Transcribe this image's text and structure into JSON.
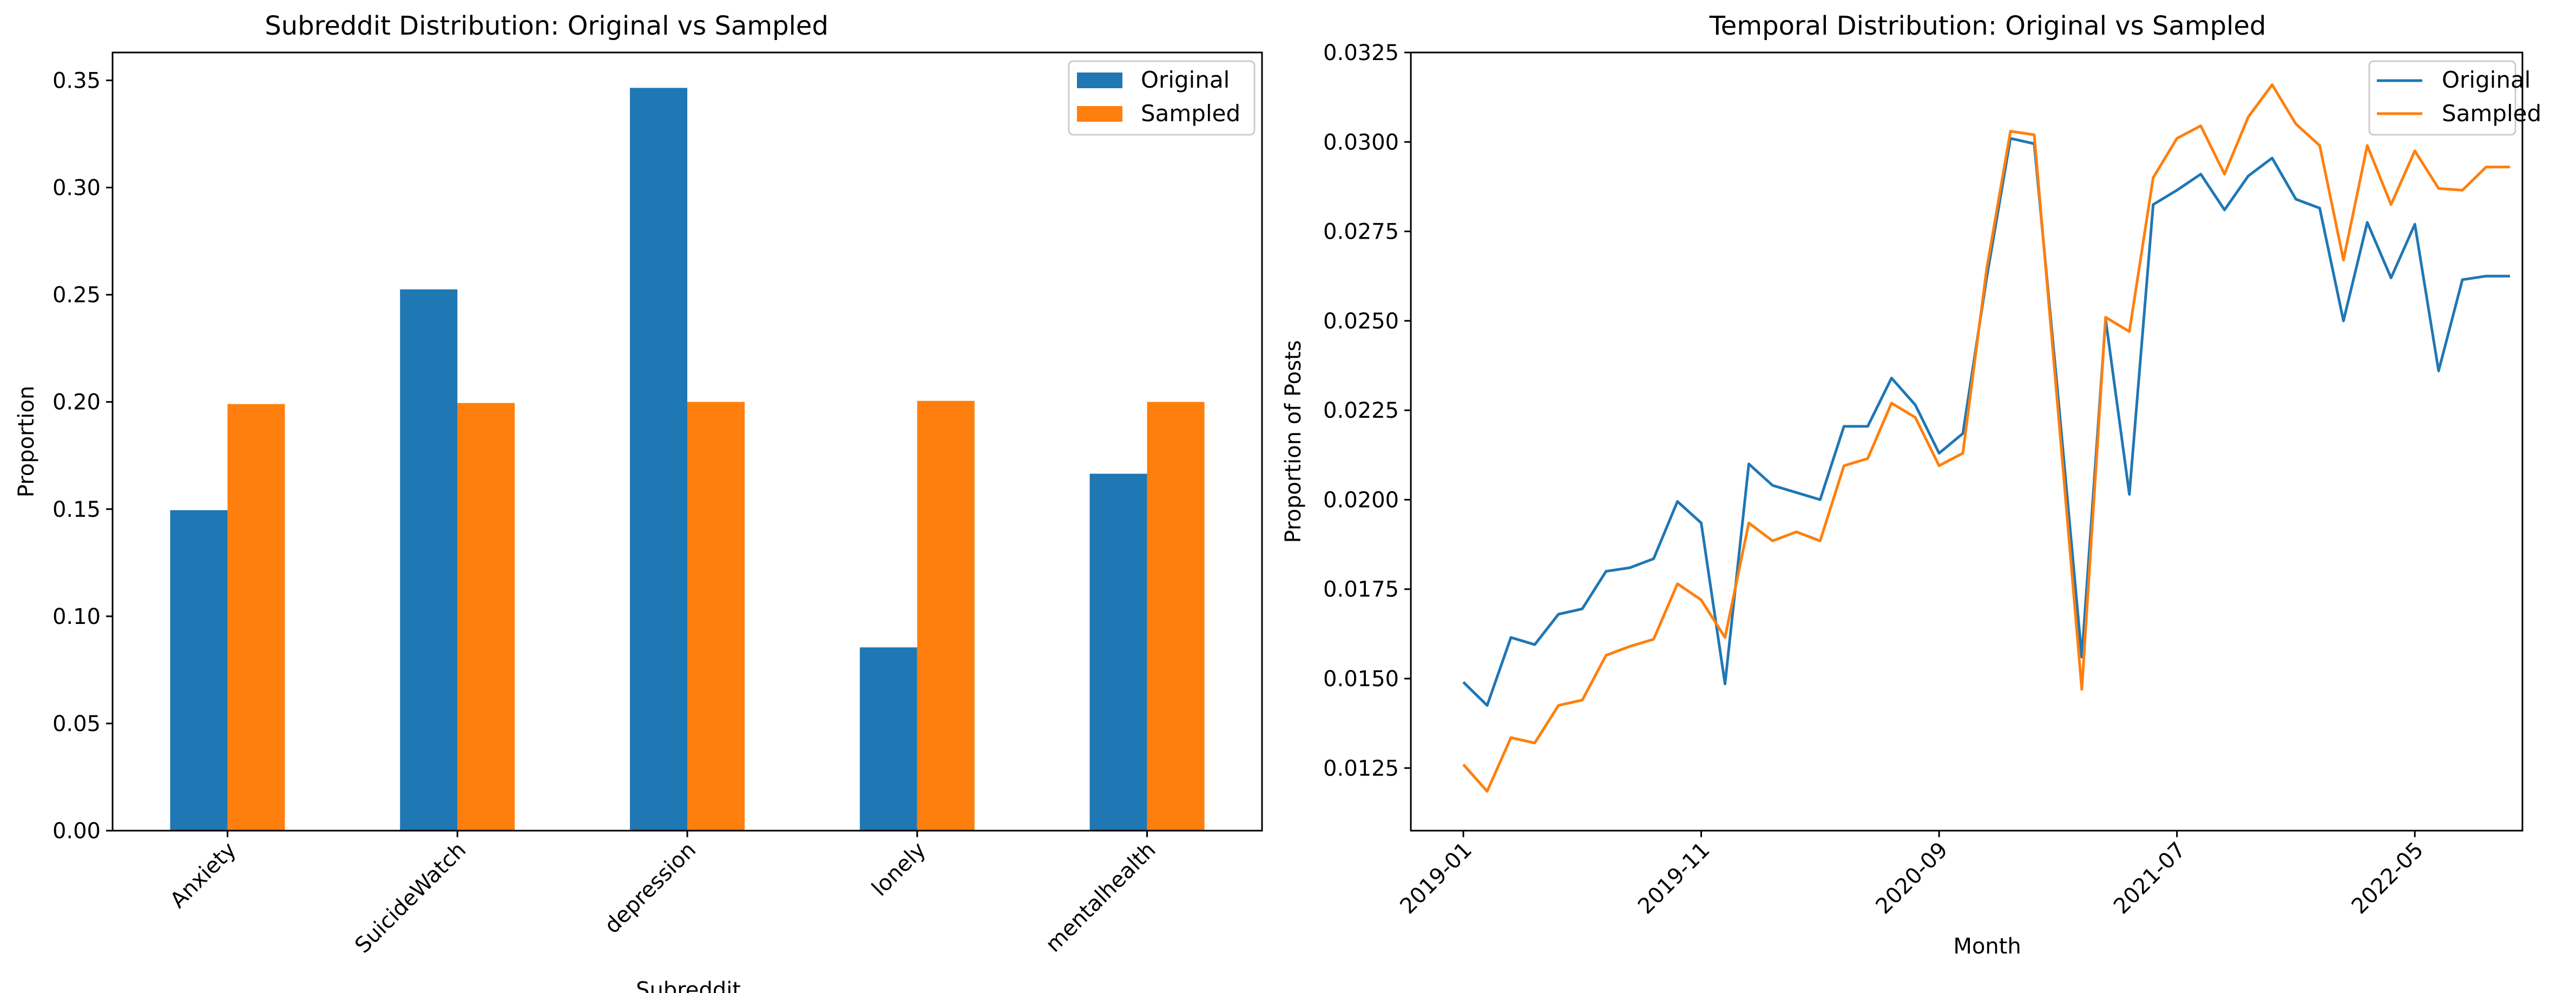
{
  "colors": {
    "original": "#1f77b4",
    "sampled": "#ff7f0e",
    "axis": "#000000",
    "legend_border": "#cccccc"
  },
  "chart_data": [
    {
      "type": "bar",
      "title": "Subreddit Distribution: Original vs Sampled",
      "xlabel": "Subreddit",
      "ylabel": "Proportion",
      "categories": [
        "Anxiety",
        "SuicideWatch",
        "depression",
        "lonely",
        "mentalhealth"
      ],
      "series": [
        {
          "name": "Original",
          "values": [
            0.1495,
            0.2525,
            0.3465,
            0.0855,
            0.1665
          ]
        },
        {
          "name": "Sampled",
          "values": [
            0.199,
            0.1995,
            0.2,
            0.2005,
            0.2
          ]
        }
      ],
      "ylim": [
        0,
        0.363
      ],
      "yticks": [
        0.0,
        0.05,
        0.1,
        0.15,
        0.2,
        0.25,
        0.3,
        0.35
      ],
      "ytick_labels": [
        "0.00",
        "0.05",
        "0.10",
        "0.15",
        "0.20",
        "0.25",
        "0.30",
        "0.35"
      ],
      "legend": "top-right",
      "grid": false
    },
    {
      "type": "line",
      "title": "Temporal Distribution: Original vs Sampled",
      "xlabel": "Month",
      "ylabel": "Proportion of Posts",
      "x": [
        "2019-01",
        "2019-02",
        "2019-03",
        "2019-04",
        "2019-05",
        "2019-06",
        "2019-07",
        "2019-08",
        "2019-09",
        "2019-10",
        "2019-11",
        "2019-12",
        "2020-01",
        "2020-02",
        "2020-03",
        "2020-04",
        "2020-05",
        "2020-06",
        "2020-07",
        "2020-08",
        "2020-09",
        "2020-10",
        "2020-11",
        "2020-12",
        "2021-01",
        "2021-02",
        "2021-03",
        "2021-04",
        "2021-05",
        "2021-06",
        "2021-07",
        "2021-08",
        "2021-09",
        "2021-10",
        "2021-11",
        "2021-12",
        "2022-01",
        "2022-02",
        "2022-03",
        "2022-04",
        "2022-05",
        "2022-06",
        "2022-07",
        "2022-08",
        "2022-09"
      ],
      "series": [
        {
          "name": "Original",
          "values": [
            0.0149,
            0.01425,
            0.01615,
            0.01595,
            0.0168,
            0.01695,
            0.018,
            0.0181,
            0.01835,
            0.01995,
            0.01935,
            0.01485,
            0.021,
            0.0204,
            0.0202,
            0.02,
            0.02205,
            0.02205,
            0.0234,
            0.02265,
            0.0213,
            0.02185,
            0.0262,
            0.0301,
            0.02995,
            0.0229,
            0.0156,
            0.02505,
            0.02015,
            0.02825,
            0.02865,
            0.0291,
            0.0281,
            0.02905,
            0.02955,
            0.0284,
            0.02815,
            0.025,
            0.02775,
            0.0262,
            0.0277,
            0.0236,
            0.02615,
            0.02625,
            0.02625
          ]
        },
        {
          "name": "Sampled",
          "values": [
            0.0126,
            0.01185,
            0.01335,
            0.0132,
            0.01425,
            0.0144,
            0.01565,
            0.0159,
            0.0161,
            0.01765,
            0.0172,
            0.01615,
            0.01935,
            0.01885,
            0.0191,
            0.01885,
            0.02095,
            0.02115,
            0.0227,
            0.0223,
            0.02095,
            0.0213,
            0.02645,
            0.0303,
            0.0302,
            0.0225,
            0.0147,
            0.0251,
            0.0247,
            0.029,
            0.0301,
            0.03045,
            0.0291,
            0.0307,
            0.0316,
            0.0305,
            0.0299,
            0.0267,
            0.0299,
            0.02825,
            0.02975,
            0.0287,
            0.02865,
            0.0293,
            0.0293
          ]
        }
      ],
      "ylim": [
        0.01075,
        0.0325
      ],
      "yticks": [
        0.0125,
        0.015,
        0.0175,
        0.02,
        0.0225,
        0.025,
        0.0275,
        0.03,
        0.0325
      ],
      "ytick_labels": [
        "0.0125",
        "0.0150",
        "0.0175",
        "0.0200",
        "0.0225",
        "0.0250",
        "0.0275",
        "0.0300",
        "0.0325"
      ],
      "xtick_labels": [
        "2019-01",
        "2019-11",
        "2020-09",
        "2021-07",
        "2022-05"
      ],
      "legend": "top-right",
      "grid": false
    }
  ]
}
